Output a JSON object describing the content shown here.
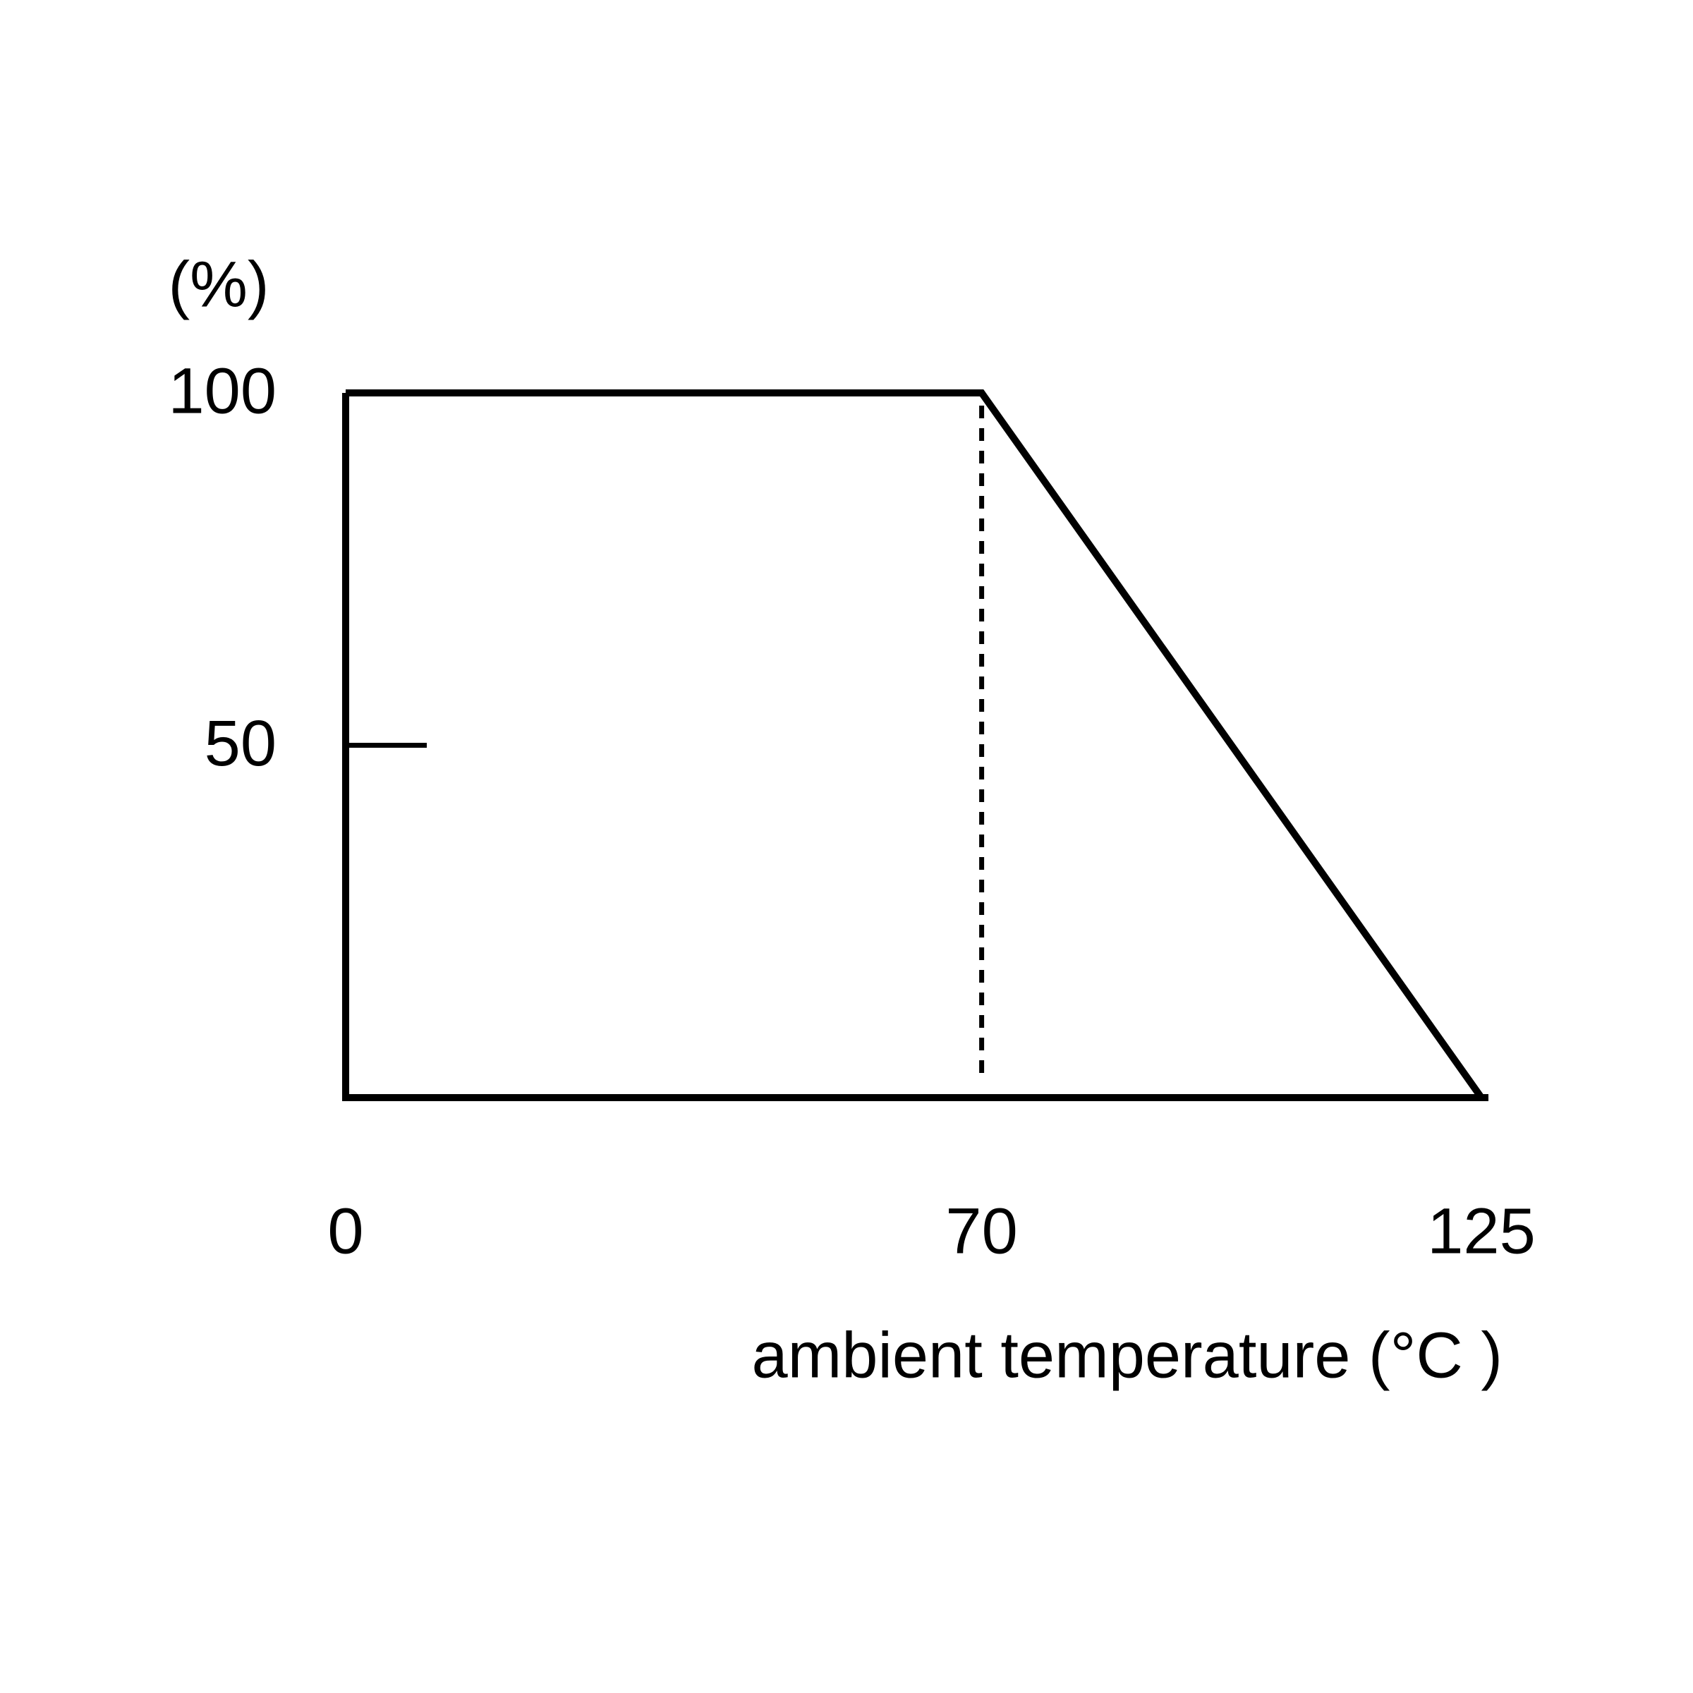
{
  "chart_data": {
    "type": "line",
    "y_label": "(%)",
    "x_label": "ambient temperature (°C )",
    "x": [
      0,
      70,
      125
    ],
    "values": [
      100,
      100,
      0
    ],
    "color": "#000000",
    "xlim": [
      0,
      125
    ],
    "ylim": [
      0,
      100
    ],
    "xticks": [
      0,
      70,
      125
    ],
    "yticks": [
      50,
      100
    ],
    "reference_lines": [
      {
        "x": 70,
        "style": "dotted"
      }
    ]
  }
}
